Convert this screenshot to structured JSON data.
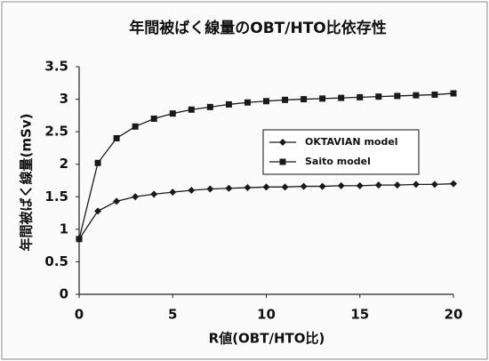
{
  "chart_data": {
    "type": "line",
    "title": "年間被ばく線量のOBT/HTO比依存性",
    "x_label": "R値(OBT/HTO比)",
    "y_label": "年間被ばく線量(mSv)",
    "x": [
      0,
      1,
      2,
      3,
      4,
      5,
      6,
      7,
      8,
      9,
      10,
      11,
      12,
      13,
      14,
      15,
      16,
      17,
      18,
      19,
      20
    ],
    "series": [
      {
        "name": "OKTAVIAN model",
        "color": "#1a1a1a",
        "marker": "diamond",
        "values": [
          0.85,
          1.28,
          1.43,
          1.5,
          1.54,
          1.57,
          1.6,
          1.62,
          1.63,
          1.64,
          1.65,
          1.65,
          1.66,
          1.66,
          1.67,
          1.67,
          1.68,
          1.68,
          1.69,
          1.69,
          1.7
        ]
      },
      {
        "name": "Saito model",
        "color": "#1a1a1a",
        "marker": "square",
        "values": [
          0.85,
          2.02,
          2.4,
          2.58,
          2.7,
          2.78,
          2.84,
          2.88,
          2.92,
          2.95,
          2.97,
          2.99,
          3.0,
          3.01,
          3.02,
          3.03,
          3.04,
          3.05,
          3.06,
          3.07,
          3.09
        ]
      }
    ],
    "xlim": [
      0,
      20
    ],
    "xticks": [
      0,
      5,
      10,
      15,
      20
    ],
    "ylim": [
      0,
      3.5
    ],
    "yticks": [
      0,
      0.5,
      1,
      1.5,
      2,
      2.5,
      3,
      3.5
    ],
    "grid": false
  }
}
